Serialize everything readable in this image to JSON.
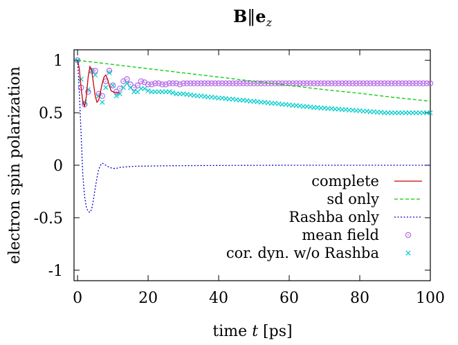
{
  "chart_data": {
    "type": "line",
    "title": {
      "main": "B",
      "sep": "‖",
      "vec": "e",
      "sub": "z"
    },
    "xlabel": {
      "prefix": "time ",
      "var": "t",
      "suffix": " [ps]"
    },
    "ylabel": "electron spin polarization",
    "xlim": [
      -1,
      100
    ],
    "ylim": [
      -1.1,
      1.1
    ],
    "xticks": [
      0,
      20,
      40,
      60,
      80,
      100
    ],
    "xtick_labels": [
      "0",
      "20",
      "40",
      "60",
      "80",
      "100"
    ],
    "yticks": [
      -1,
      -0.5,
      0,
      0.5,
      1
    ],
    "ytick_labels": [
      "-1",
      "-0.5",
      "0",
      "0.5",
      "1"
    ],
    "legend_position": "bottom-right",
    "series": [
      {
        "name": "complete",
        "style": "solid-line",
        "color": "#cc0000",
        "x": [
          0,
          0.5,
          1,
          1.5,
          2,
          2.5,
          3,
          3.5,
          4,
          4.5,
          5,
          5.5,
          6,
          6.5,
          7,
          7.5,
          8,
          8.5,
          9,
          9.5,
          10,
          11,
          12
        ],
        "y": [
          1.0,
          0.92,
          0.74,
          0.6,
          0.56,
          0.66,
          0.84,
          0.94,
          0.91,
          0.78,
          0.66,
          0.6,
          0.62,
          0.7,
          0.78,
          0.84,
          0.86,
          0.82,
          0.76,
          0.71,
          0.7,
          0.69,
          0.69
        ]
      },
      {
        "name": "sd only",
        "style": "dashed-line",
        "color": "#00cc00",
        "x": [
          0,
          10,
          20,
          30,
          40,
          50,
          60,
          70,
          80,
          90,
          100
        ],
        "y": [
          1.0,
          0.96,
          0.92,
          0.88,
          0.84,
          0.8,
          0.76,
          0.72,
          0.685,
          0.645,
          0.61
        ]
      },
      {
        "name": "Rashba only",
        "style": "dotted-line",
        "color": "#0000cc",
        "x": [
          0,
          0.5,
          1,
          1.5,
          2,
          2.5,
          3,
          3.5,
          4,
          4.5,
          5,
          5.5,
          6,
          6.5,
          7,
          7.5,
          8,
          8.5,
          9,
          10,
          11,
          12,
          14,
          16,
          20,
          25,
          30,
          40,
          50,
          60,
          70,
          80,
          90,
          100
        ],
        "y": [
          1.0,
          0.7,
          0.3,
          -0.1,
          -0.3,
          -0.4,
          -0.44,
          -0.45,
          -0.42,
          -0.33,
          -0.22,
          -0.12,
          -0.04,
          0.0,
          0.02,
          0.01,
          0.0,
          -0.01,
          -0.02,
          -0.03,
          -0.03,
          -0.02,
          -0.015,
          -0.01,
          -0.008,
          -0.005,
          -0.004,
          -0.002,
          -0.001,
          0.0,
          0.0,
          0.0,
          0.0,
          0.0
        ]
      },
      {
        "name": "mean field",
        "style": "circle-markers",
        "color": "#b366e6",
        "x": [
          0,
          1,
          2,
          3,
          4,
          5,
          6,
          7,
          8,
          9,
          10,
          11,
          12,
          13,
          14,
          15,
          16,
          17,
          18,
          19,
          20,
          21,
          22,
          23,
          24,
          25,
          26,
          27,
          28,
          29,
          30,
          31,
          32,
          33,
          34,
          35,
          36,
          37,
          38,
          39,
          40,
          41,
          42,
          43,
          44,
          45,
          46,
          47,
          48,
          49,
          50,
          51,
          52,
          53,
          54,
          55,
          56,
          57,
          58,
          59,
          60,
          61,
          62,
          63,
          64,
          65,
          66,
          67,
          68,
          69,
          70,
          71,
          72,
          73,
          74,
          75,
          76,
          77,
          78,
          79,
          80,
          81,
          82,
          83,
          84,
          85,
          86,
          87,
          88,
          89,
          90,
          91,
          92,
          93,
          94,
          95,
          96,
          97,
          98,
          99,
          100
        ],
        "y": [
          1.0,
          0.74,
          0.58,
          0.7,
          0.9,
          0.9,
          0.68,
          0.66,
          0.8,
          0.9,
          0.76,
          0.7,
          0.73,
          0.8,
          0.82,
          0.77,
          0.74,
          0.76,
          0.8,
          0.79,
          0.77,
          0.77,
          0.78,
          0.78,
          0.77,
          0.77,
          0.78,
          0.78,
          0.78,
          0.77,
          0.78,
          0.78,
          0.78,
          0.78,
          0.78,
          0.78,
          0.78,
          0.78,
          0.78,
          0.78,
          0.78,
          0.78,
          0.78,
          0.78,
          0.78,
          0.78,
          0.78,
          0.78,
          0.78,
          0.78,
          0.78,
          0.78,
          0.78,
          0.78,
          0.78,
          0.78,
          0.78,
          0.78,
          0.78,
          0.78,
          0.78,
          0.78,
          0.78,
          0.78,
          0.78,
          0.78,
          0.78,
          0.78,
          0.78,
          0.78,
          0.78,
          0.78,
          0.78,
          0.78,
          0.78,
          0.78,
          0.78,
          0.78,
          0.78,
          0.78,
          0.78,
          0.78,
          0.78,
          0.78,
          0.78,
          0.78,
          0.78,
          0.78,
          0.78,
          0.78,
          0.78,
          0.78,
          0.78,
          0.78,
          0.78,
          0.78,
          0.78,
          0.78,
          0.78,
          0.78,
          0.78
        ]
      },
      {
        "name": "cor. dyn. w/o Rashba",
        "style": "x-markers",
        "color": "#00cccc",
        "x": [
          0,
          1,
          2,
          3,
          4,
          5,
          6,
          7,
          8,
          9,
          10,
          11,
          12,
          13,
          14,
          15,
          16,
          17,
          18,
          19,
          20,
          21,
          22,
          23,
          24,
          25,
          26,
          27,
          28,
          29,
          30,
          31,
          32,
          33,
          34,
          35,
          36,
          37,
          38,
          39,
          40,
          41,
          42,
          43,
          44,
          45,
          46,
          47,
          48,
          49,
          50,
          51,
          52,
          53,
          54,
          55,
          56,
          57,
          58,
          59,
          60,
          61,
          62,
          63,
          64,
          65,
          66,
          67,
          68,
          69,
          70,
          71,
          72,
          73,
          74,
          75,
          76,
          77,
          78,
          79,
          80,
          81,
          82,
          83,
          84,
          85,
          86,
          87,
          88,
          89,
          90,
          91,
          92,
          93,
          94,
          95,
          96,
          97,
          98,
          99,
          100
        ],
        "y": [
          1.0,
          0.82,
          0.6,
          0.72,
          0.9,
          0.86,
          0.66,
          0.6,
          0.74,
          0.88,
          0.76,
          0.66,
          0.68,
          0.74,
          0.78,
          0.74,
          0.7,
          0.7,
          0.73,
          0.73,
          0.71,
          0.7,
          0.7,
          0.7,
          0.7,
          0.7,
          0.7,
          0.69,
          0.68,
          0.68,
          0.68,
          0.675,
          0.67,
          0.665,
          0.66,
          0.66,
          0.655,
          0.65,
          0.65,
          0.645,
          0.64,
          0.64,
          0.635,
          0.63,
          0.63,
          0.625,
          0.62,
          0.62,
          0.615,
          0.61,
          0.61,
          0.605,
          0.6,
          0.6,
          0.595,
          0.59,
          0.59,
          0.585,
          0.58,
          0.58,
          0.575,
          0.57,
          0.57,
          0.565,
          0.56,
          0.56,
          0.555,
          0.55,
          0.55,
          0.545,
          0.545,
          0.54,
          0.54,
          0.535,
          0.535,
          0.53,
          0.53,
          0.525,
          0.525,
          0.52,
          0.52,
          0.515,
          0.515,
          0.51,
          0.51,
          0.505,
          0.505,
          0.5,
          0.5,
          0.5,
          0.5,
          0.5,
          0.5,
          0.5,
          0.5,
          0.5,
          0.5,
          0.5,
          0.5,
          0.5,
          0.5
        ]
      }
    ]
  }
}
